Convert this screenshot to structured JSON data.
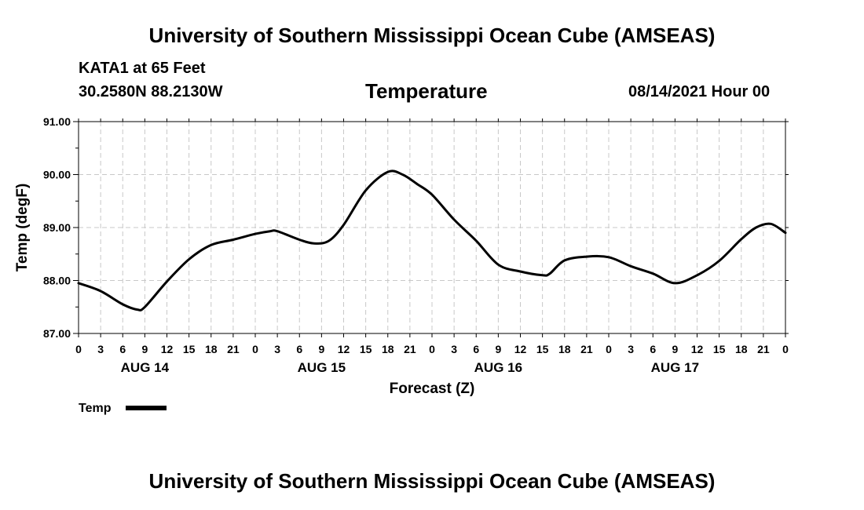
{
  "header": {
    "title": "University of Southern Mississippi Ocean Cube (AMSEAS)",
    "station": "KATA1 at 65 Feet",
    "coords": "30.2580N  88.2130W",
    "date": "08/14/2021 Hour 00"
  },
  "footer": {
    "title": "University of Southern Mississippi Ocean Cube (AMSEAS)"
  },
  "chart_data": {
    "type": "line",
    "title": "Temperature",
    "xlabel": "Forecast (Z)",
    "ylabel": "Temp (degF)",
    "ylim": [
      87.0,
      91.0
    ],
    "y_ticks": [
      "87.00",
      "88.00",
      "89.00",
      "90.00",
      "91.00"
    ],
    "xlim": [
      0,
      96
    ],
    "x_tick_labels": [
      "0",
      "3",
      "6",
      "9",
      "12",
      "15",
      "18",
      "21",
      "0",
      "3",
      "6",
      "9",
      "12",
      "15",
      "18",
      "21",
      "0",
      "3",
      "6",
      "9",
      "12",
      "15",
      "18",
      "21",
      "0",
      "3",
      "6",
      "9",
      "12",
      "15",
      "18",
      "21",
      "0"
    ],
    "day_labels": [
      {
        "label": "AUG 14",
        "hour": 9
      },
      {
        "label": "AUG 15",
        "hour": 33
      },
      {
        "label": "AUG 16",
        "hour": 57
      },
      {
        "label": "AUG 17",
        "hour": 81
      }
    ],
    "grid": true,
    "legend_position": "bottom-left",
    "line_color": "#000000",
    "series": [
      {
        "name": "Temp",
        "x": [
          0,
          3,
          6,
          8,
          9,
          12,
          15,
          18,
          21,
          24,
          26,
          27,
          30,
          32,
          34,
          36,
          39,
          42,
          44,
          46,
          48,
          51,
          54,
          57,
          60,
          63,
          64,
          66,
          69,
          72,
          75,
          78,
          81,
          84,
          87,
          90,
          92,
          94,
          96
        ],
        "values": [
          87.95,
          87.8,
          87.55,
          87.45,
          87.5,
          87.98,
          88.4,
          88.67,
          88.77,
          88.88,
          88.93,
          88.93,
          88.77,
          88.7,
          88.75,
          89.05,
          89.7,
          90.05,
          90.0,
          89.82,
          89.62,
          89.15,
          88.75,
          88.3,
          88.17,
          88.1,
          88.13,
          88.38,
          88.45,
          88.44,
          88.27,
          88.13,
          87.95,
          88.1,
          88.37,
          88.78,
          89.0,
          89.07,
          88.9
        ]
      }
    ]
  }
}
